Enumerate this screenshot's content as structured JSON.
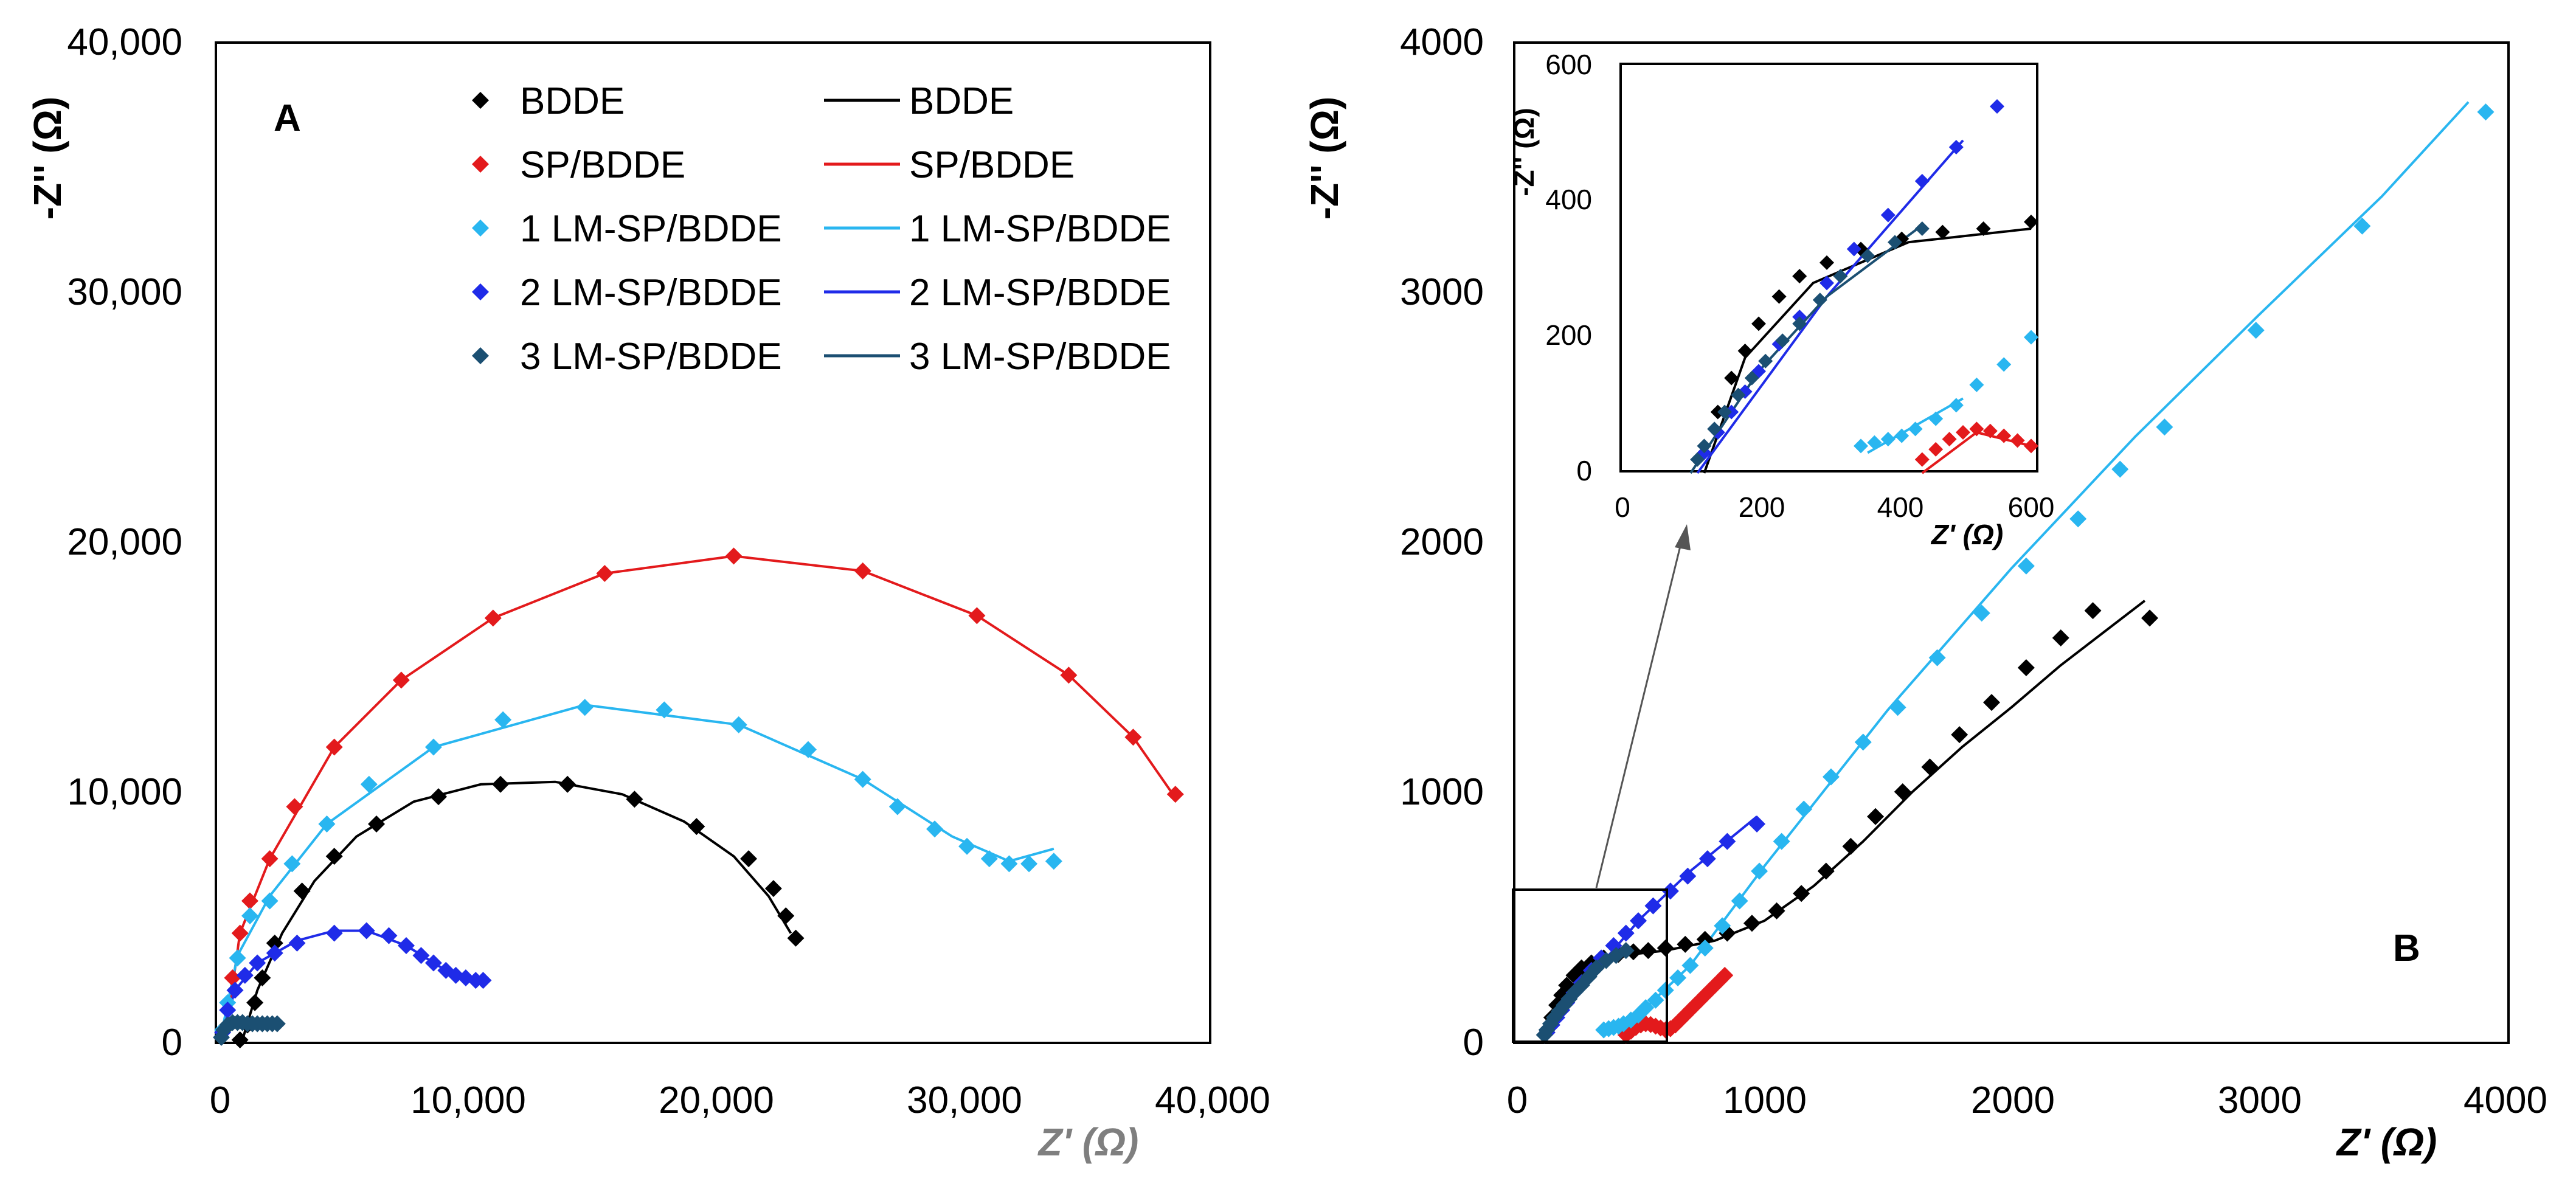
{
  "figure": {
    "colors": {
      "BDDE": "#000000",
      "SP/BDDE": "#e31a1c",
      "1 LM-SP/BDDE": "#29b6f0",
      "2 LM-SP/BDDE": "#1f2be8",
      "3 LM-SP/BDDE": "#1b4f72"
    }
  },
  "chart_data": [
    {
      "panel_label": "A",
      "type": "scatter",
      "title": "",
      "xlabel": "Z' (Ω)",
      "ylabel": "-Z'' (Ω)",
      "xlim": [
        0,
        40000
      ],
      "ylim": [
        0,
        40000
      ],
      "xticks": [
        "0",
        "10,000",
        "20,000",
        "30,000",
        "40,000"
      ],
      "yticks": [
        "0",
        "10,000",
        "20,000",
        "30,000",
        "40,000"
      ],
      "legend": {
        "placement": "top-center",
        "marker_entries": [
          "BDDE",
          "SP/BDDE",
          "1 LM-SP/BDDE",
          "2 LM-SP/BDDE",
          "3 LM-SP/BDDE"
        ],
        "line_entries": [
          "BDDE",
          "SP/BDDE",
          "1 LM-SP/BDDE",
          "2 LM-SP/BDDE",
          "3 LM-SP/BDDE"
        ]
      },
      "series": [
        {
          "name": "BDDE",
          "x": [
            800,
            1100,
            1400,
            1700,
            2200,
            3300,
            4600,
            6300,
            8800,
            11300,
            14000,
            16700,
            19200,
            21300,
            22300,
            22800,
            23200
          ],
          "y": [
            0,
            600,
            1500,
            2500,
            3900,
            6000,
            7400,
            8700,
            9800,
            10300,
            10300,
            9700,
            8600,
            7300,
            6100,
            5000,
            4100
          ],
          "fit": [
            [
              900,
              0
            ],
            [
              1500,
              2000
            ],
            [
              2500,
              4300
            ],
            [
              3800,
              6400
            ],
            [
              5500,
              8200
            ],
            [
              7800,
              9600
            ],
            [
              10500,
              10300
            ],
            [
              13500,
              10400
            ],
            [
              16200,
              9900
            ],
            [
              18700,
              8800
            ],
            [
              20700,
              7400
            ],
            [
              22100,
              5800
            ],
            [
              23000,
              4300
            ]
          ]
        },
        {
          "name": "SP/BDDE",
          "x": [
            200,
            500,
            800,
            1200,
            2000,
            3000,
            4600,
            7300,
            11000,
            15500,
            20700,
            25900,
            30500,
            34200,
            36800,
            38500
          ],
          "y": [
            500,
            2500,
            4300,
            5600,
            7300,
            9400,
            11800,
            14500,
            17000,
            18800,
            19500,
            18900,
            17100,
            14700,
            12200,
            9900
          ],
          "fit": [
            [
              200,
              0
            ],
            [
              800,
              4300
            ],
            [
              2000,
              7300
            ],
            [
              4600,
              11800
            ],
            [
              7300,
              14500
            ],
            [
              11000,
              17000
            ],
            [
              15500,
              18800
            ],
            [
              20700,
              19500
            ],
            [
              25900,
              18900
            ],
            [
              30500,
              17100
            ],
            [
              34200,
              14700
            ],
            [
              36800,
              12200
            ],
            [
              38400,
              9900
            ]
          ]
        },
        {
          "name": "1 LM-SP/BDDE",
          "x": [
            100,
            300,
            700,
            1200,
            2000,
            2900,
            4300,
            6000,
            8600,
            11400,
            14700,
            17900,
            20900,
            23700,
            25900,
            27300,
            28800,
            30100,
            31000,
            31800,
            32600,
            33600
          ],
          "y": [
            400,
            1500,
            3300,
            5000,
            5600,
            7100,
            8700,
            10300,
            11800,
            12900,
            13400,
            13300,
            12700,
            11700,
            10500,
            9400,
            8500,
            7800,
            7300,
            7100,
            7100,
            7200
          ],
          "fit": [
            [
              0,
              0
            ],
            [
              700,
              3400
            ],
            [
              2000,
              5800
            ],
            [
              4300,
              8700
            ],
            [
              8600,
              11800
            ],
            [
              14700,
              13500
            ],
            [
              20900,
              12700
            ],
            [
              25900,
              10500
            ],
            [
              29500,
              8200
            ],
            [
              31800,
              7200
            ],
            [
              33600,
              7700
            ]
          ]
        },
        {
          "name": "2 LM-SP/BDDE",
          "x": [
            100,
            300,
            600,
            1000,
            1500,
            2200,
            3100,
            4600,
            5900,
            6800,
            7500,
            8100,
            8600,
            9100,
            9500,
            9900,
            10300,
            10600
          ],
          "y": [
            300,
            1200,
            2000,
            2600,
            3100,
            3500,
            3900,
            4300,
            4400,
            4200,
            3800,
            3400,
            3100,
            2800,
            2600,
            2500,
            2400,
            2400
          ],
          "fit": [
            [
              0,
              0
            ],
            [
              600,
              2000
            ],
            [
              1500,
              3100
            ],
            [
              3100,
              4000
            ],
            [
              4600,
              4400
            ],
            [
              5900,
              4400
            ],
            [
              7500,
              3800
            ],
            [
              9100,
              2800
            ],
            [
              10600,
              2400
            ]
          ]
        },
        {
          "name": "3 LM-SP/BDDE",
          "x": [
            50,
            150,
            300,
            500,
            700,
            900,
            1100,
            1300,
            1500,
            1700,
            1900,
            2100,
            2300
          ],
          "y": [
            100,
            400,
            600,
            700,
            700,
            700,
            650,
            650,
            650,
            650,
            650,
            650,
            650
          ],
          "fit": [
            [
              0,
              0
            ],
            [
              300,
              600
            ],
            [
              700,
              720
            ],
            [
              1300,
              680
            ],
            [
              2300,
              650
            ]
          ]
        }
      ]
    },
    {
      "panel_label": "B",
      "type": "scatter",
      "title": "",
      "xlabel": "Z' (Ω)",
      "ylabel": "-Z'' (Ω)",
      "xlim": [
        0,
        4000
      ],
      "ylim": [
        0,
        4000
      ],
      "xticks": [
        "0",
        "1000",
        "2000",
        "3000",
        "4000"
      ],
      "yticks": [
        "0",
        "1000",
        "2000",
        "3000",
        "4000"
      ],
      "series": [
        {
          "name": "BDDE",
          "x": [
            120,
            140,
            160,
            180,
            200,
            230,
            260,
            300,
            350,
            410,
            470,
            530,
            600,
            680,
            760,
            850,
            950,
            1050,
            1150,
            1250,
            1350,
            1450,
            1560,
            1670,
            1790,
            1920,
            2060,
            2200,
            2330,
            2560
          ],
          "y": [
            30,
            90,
            140,
            180,
            220,
            260,
            290,
            310,
            330,
            345,
            355,
            360,
            370,
            385,
            405,
            430,
            470,
            520,
            590,
            680,
            780,
            900,
            1000,
            1100,
            1230,
            1360,
            1500,
            1620,
            1730,
            1700
          ],
          "fit": [
            [
              120,
              0
            ],
            [
              180,
              170
            ],
            [
              280,
              280
            ],
            [
              420,
              340
            ],
            [
              600,
              360
            ],
            [
              800,
              400
            ],
            [
              1000,
              480
            ],
            [
              1200,
              620
            ],
            [
              1400,
              800
            ],
            [
              1600,
              1000
            ],
            [
              1800,
              1180
            ],
            [
              2000,
              1340
            ],
            [
              2200,
              1510
            ],
            [
              2540,
              1770
            ]
          ]
        },
        {
          "name": "SP/BDDE",
          "x": [
            440,
            460,
            480,
            500,
            520,
            540,
            560,
            580,
            600,
            620,
            640,
            660,
            680,
            700,
            720,
            740,
            760,
            780,
            800,
            820,
            840
          ],
          "y": [
            20,
            35,
            50,
            60,
            65,
            62,
            55,
            48,
            40,
            45,
            60,
            80,
            100,
            120,
            140,
            160,
            180,
            200,
            220,
            240,
            260
          ],
          "fit": [
            [
              440,
              0
            ],
            [
              520,
              60
            ],
            [
              600,
              40
            ],
            [
              660,
              80
            ],
            [
              760,
              180
            ],
            [
              850,
              270
            ]
          ]
        },
        {
          "name": "1 LM-SP/BDDE",
          "x": [
            350,
            370,
            390,
            410,
            430,
            460,
            490,
            520,
            560,
            600,
            650,
            700,
            760,
            830,
            900,
            980,
            1070,
            1160,
            1270,
            1400,
            1540,
            1700,
            1880,
            2060,
            2270,
            2440,
            2620,
            2990,
            3420,
            3920
          ],
          "y": [
            40,
            45,
            50,
            55,
            65,
            80,
            100,
            130,
            160,
            200,
            250,
            300,
            370,
            460,
            560,
            680,
            800,
            930,
            1060,
            1200,
            1340,
            1540,
            1720,
            1910,
            2100,
            2300,
            2470,
            2860,
            3280,
            3740
          ],
          "fit": [
            [
              360,
              30
            ],
            [
              500,
              110
            ],
            [
              700,
              300
            ],
            [
              1000,
              700
            ],
            [
              1500,
              1330
            ],
            [
              2000,
              1900
            ],
            [
              2500,
              2430
            ],
            [
              3000,
              2920
            ],
            [
              3500,
              3400
            ],
            [
              3850,
              3780
            ]
          ]
        },
        {
          "name": "2 LM-SP/BDDE",
          "x": [
            120,
            140,
            160,
            180,
            200,
            230,
            260,
            300,
            340,
            390,
            440,
            490,
            550,
            620,
            690,
            770,
            850,
            970
          ],
          "y": [
            30,
            60,
            90,
            120,
            150,
            190,
            230,
            280,
            330,
            380,
            430,
            480,
            540,
            600,
            660,
            730,
            800,
            870
          ],
          "fit": [
            [
              110,
              0
            ],
            [
              300,
              260
            ],
            [
              500,
              490
            ],
            [
              700,
              680
            ],
            [
              970,
              900
            ]
          ]
        },
        {
          "name": "3 LM-SP/BDDE",
          "x": [
            110,
            120,
            135,
            150,
            170,
            190,
            210,
            235,
            260,
            290,
            320,
            360,
            400,
            440
          ],
          "y": [
            20,
            40,
            65,
            90,
            115,
            140,
            165,
            195,
            220,
            255,
            290,
            320,
            340,
            360
          ],
          "fit": [
            [
              100,
              0
            ],
            [
              200,
              150
            ],
            [
              300,
              260
            ],
            [
              440,
              365
            ]
          ]
        }
      ],
      "inset": {
        "xlim": [
          0,
          600
        ],
        "ylim": [
          0,
          600
        ],
        "xticks": [
          "0",
          "200",
          "400",
          "600"
        ],
        "yticks": [
          "0",
          "200",
          "400",
          "600"
        ],
        "xlabel": "Z' (Ω)",
        "ylabel": "-Z'' (Ω)",
        "zoom_region": {
          "x": [
            0,
            600
          ],
          "y": [
            0,
            600
          ]
        }
      }
    }
  ]
}
